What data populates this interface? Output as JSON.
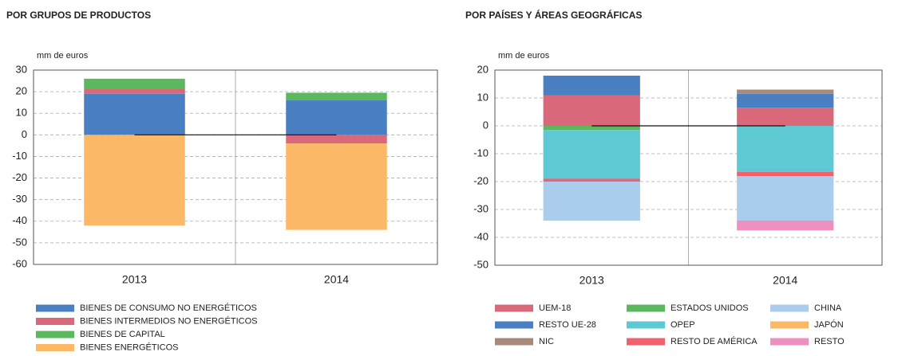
{
  "chart_data": [
    {
      "type": "bar",
      "stacked": true,
      "title": "POR GRUPOS DE PRODUCTOS",
      "y_label": "mm de euros",
      "categories": [
        "2013",
        "2014"
      ],
      "series": [
        {
          "name": "BIENES DE CONSUMO NO ENERGÉTICOS",
          "color": "#4a7fc1",
          "values": [
            19,
            16
          ]
        },
        {
          "name": "BIENES INTERMEDIOS NO ENERGÉTICOS",
          "color": "#d9687a",
          "values": [
            2.5,
            -4
          ]
        },
        {
          "name": "BIENES DE CAPITAL",
          "color": "#5bb85f",
          "values": [
            4.5,
            3.5
          ]
        },
        {
          "name": "BIENES ENERGÉTICOS",
          "color": "#fbb867",
          "values": [
            -42,
            -40
          ]
        }
      ],
      "ylim": [
        -60,
        30
      ],
      "yticks": [
        -60,
        -50,
        -40,
        -30,
        -20,
        -10,
        0,
        10,
        20,
        30
      ],
      "grid": true
    },
    {
      "type": "bar",
      "stacked": true,
      "title": "POR PAÍSES Y ÁREAS GEOGRÁFICAS",
      "y_label": "mm de euros",
      "categories": [
        "2013",
        "2014"
      ],
      "series": [
        {
          "name": "UEM-18",
          "color": "#d9687a",
          "values": [
            11,
            6.5
          ]
        },
        {
          "name": "RESTO UE-28",
          "color": "#4a7fc1",
          "values": [
            7,
            5
          ]
        },
        {
          "name": "NIC",
          "color": "#a88a7a",
          "values": [
            0,
            1.5
          ]
        },
        {
          "name": "ESTADOS UNIDOS",
          "color": "#5bb85f",
          "values": [
            -1.5,
            0
          ]
        },
        {
          "name": "OPEP",
          "color": "#5fc9d3",
          "values": [
            -17.5,
            -16.5
          ]
        },
        {
          "name": "RESTO DE AMÉRICA",
          "color": "#f0606f",
          "values": [
            -1,
            -1.5
          ]
        },
        {
          "name": "CHINA",
          "color": "#aacdee",
          "values": [
            -14,
            -16
          ]
        },
        {
          "name": "JAPÓN",
          "color": "#fbb867",
          "values": [
            0,
            0
          ]
        },
        {
          "name": "RESTO",
          "color": "#ee8fc0",
          "values": [
            0,
            -3.5
          ]
        }
      ],
      "ylim": [
        -50,
        20
      ],
      "yticks": [
        -50,
        -40,
        -30,
        -20,
        -10,
        0,
        10,
        20
      ],
      "grid": true
    }
  ]
}
